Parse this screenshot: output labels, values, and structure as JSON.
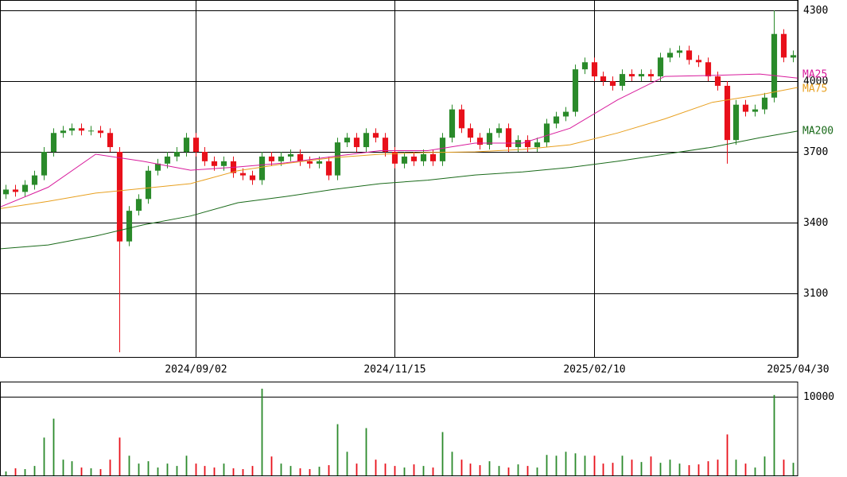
{
  "chart_data": [
    {
      "type": "candlestick",
      "up_color": "#2a8a2a",
      "down_color": "#e8101a",
      "xlim": [
        0,
        84
      ],
      "xticks": [
        {
          "value": 20.5,
          "label": "2024/09/02"
        },
        {
          "value": 41.5,
          "label": "2024/11/15"
        },
        {
          "value": 62.5,
          "label": "2025/02/10"
        },
        {
          "value": 84,
          "label": "2025/04/30"
        }
      ],
      "ylim": [
        2830,
        4344
      ],
      "yticks": [
        3100,
        3400,
        3700,
        4000,
        4300
      ],
      "grid": true,
      "open": [
        3520,
        3540,
        3530,
        3560,
        3600,
        3700,
        3780,
        3790,
        3800,
        3790,
        3790,
        3780,
        3700,
        3320,
        3450,
        3500,
        3620,
        3650,
        3680,
        3700,
        3760,
        3700,
        3660,
        3640,
        3660,
        3610,
        3600,
        3580,
        3680,
        3660,
        3680,
        3690,
        3660,
        3650,
        3660,
        3600,
        3740,
        3760,
        3720,
        3780,
        3760,
        3700,
        3650,
        3680,
        3660,
        3690,
        3660,
        3760,
        3880,
        3800,
        3760,
        3730,
        3780,
        3800,
        3720,
        3750,
        3720,
        3740,
        3820,
        3850,
        3870,
        4050,
        4080,
        4020,
        4000,
        3980,
        4030,
        4020,
        4030,
        4020,
        4100,
        4120,
        4130,
        4090,
        4080,
        4020,
        3980,
        3750,
        3900,
        3870,
        3880,
        3930,
        4200,
        4100
      ],
      "high": [
        3560,
        3560,
        3580,
        3620,
        3720,
        3800,
        3810,
        3820,
        3820,
        3810,
        3810,
        3800,
        3720,
        3470,
        3520,
        3640,
        3670,
        3700,
        3720,
        3780,
        3780,
        3720,
        3680,
        3680,
        3680,
        3630,
        3620,
        3700,
        3700,
        3700,
        3710,
        3710,
        3680,
        3680,
        3680,
        3760,
        3780,
        3780,
        3800,
        3800,
        3780,
        3720,
        3700,
        3700,
        3710,
        3710,
        3780,
        3900,
        3900,
        3820,
        3780,
        3800,
        3820,
        3820,
        3770,
        3770,
        3760,
        3840,
        3870,
        3890,
        4070,
        4100,
        4100,
        4040,
        4020,
        4050,
        4050,
        4050,
        4050,
        4120,
        4140,
        4150,
        4150,
        4110,
        4100,
        4040,
        4000,
        3920,
        3920,
        3900,
        3950,
        4300,
        4220,
        4130
      ],
      "low": [
        3500,
        3510,
        3510,
        3540,
        3580,
        3680,
        3760,
        3770,
        3770,
        3770,
        3760,
        3700,
        2850,
        3300,
        3430,
        3480,
        3600,
        3630,
        3660,
        3680,
        3680,
        3640,
        3620,
        3620,
        3590,
        3580,
        3560,
        3560,
        3640,
        3640,
        3660,
        3640,
        3630,
        3630,
        3580,
        3580,
        3720,
        3700,
        3700,
        3740,
        3680,
        3630,
        3630,
        3640,
        3640,
        3640,
        3640,
        3740,
        3780,
        3740,
        3710,
        3710,
        3760,
        3700,
        3700,
        3700,
        3700,
        3720,
        3800,
        3830,
        3850,
        4030,
        4000,
        3980,
        3960,
        3960,
        4000,
        4000,
        4000,
        4000,
        4080,
        4100,
        4070,
        4060,
        4000,
        3960,
        3650,
        3730,
        3850,
        3850,
        3860,
        3910,
        4080,
        4080
      ],
      "close": [
        3540,
        3530,
        3560,
        3600,
        3700,
        3780,
        3790,
        3800,
        3790,
        3790,
        3780,
        3720,
        3320,
        3450,
        3500,
        3620,
        3650,
        3680,
        3700,
        3760,
        3700,
        3660,
        3640,
        3660,
        3610,
        3600,
        3580,
        3680,
        3660,
        3680,
        3690,
        3660,
        3650,
        3660,
        3600,
        3740,
        3760,
        3720,
        3780,
        3760,
        3700,
        3650,
        3680,
        3660,
        3690,
        3660,
        3760,
        3880,
        3800,
        3760,
        3730,
        3780,
        3800,
        3720,
        3750,
        3720,
        3740,
        3820,
        3850,
        3870,
        4050,
        4080,
        4020,
        4000,
        3980,
        4030,
        4020,
        4030,
        4020,
        4100,
        4120,
        4130,
        4090,
        4080,
        4020,
        3980,
        3750,
        3900,
        3870,
        3880,
        3930,
        4200,
        4100,
        4110
      ],
      "lines": [
        {
          "name": "MA25",
          "color": "#d81b9c",
          "x": [
            0,
            5,
            10,
            15,
            20,
            25,
            30,
            35,
            40,
            45,
            50,
            55,
            60,
            65,
            70,
            75,
            80,
            84
          ],
          "values": [
            3467,
            3550,
            3690,
            3660,
            3622,
            3636,
            3653,
            3680,
            3705,
            3705,
            3737,
            3737,
            3800,
            3920,
            4020,
            4024,
            4030,
            4013
          ]
        },
        {
          "name": "MA75",
          "color": "#e8a020",
          "x": [
            0,
            5,
            10,
            15,
            20,
            25,
            30,
            35,
            40,
            45,
            50,
            55,
            60,
            65,
            70,
            75,
            80,
            84
          ],
          "values": [
            3460,
            3490,
            3525,
            3545,
            3565,
            3620,
            3650,
            3675,
            3690,
            3697,
            3700,
            3710,
            3730,
            3780,
            3840,
            3910,
            3942,
            3973
          ]
        },
        {
          "name": "MA200",
          "color": "#1a6a1a",
          "x": [
            0,
            5,
            10,
            15,
            20,
            25,
            30,
            35,
            40,
            45,
            50,
            55,
            60,
            65,
            70,
            75,
            80,
            84
          ],
          "values": [
            3289,
            3305,
            3343,
            3390,
            3428,
            3484,
            3510,
            3540,
            3565,
            3580,
            3602,
            3615,
            3634,
            3660,
            3690,
            3720,
            3760,
            3788
          ]
        }
      ]
    },
    {
      "type": "bar",
      "xlim": [
        0,
        84
      ],
      "ylim": [
        0,
        11900
      ],
      "yticks": [
        10000
      ],
      "values": [
        500,
        900,
        800,
        1200,
        4800,
        7200,
        2000,
        1800,
        1000,
        900,
        800,
        2000,
        4800,
        2500,
        1500,
        1800,
        1000,
        1500,
        1200,
        2500,
        1500,
        1200,
        1000,
        1500,
        900,
        800,
        1200,
        11000,
        2400,
        1500,
        1200,
        900,
        800,
        1100,
        1300,
        6500,
        3000,
        1500,
        6000,
        2000,
        1500,
        1200,
        1000,
        1400,
        1200,
        1000,
        5500,
        3000,
        2000,
        1500,
        1300,
        1800,
        1200,
        1000,
        1400,
        1200,
        1000,
        2600,
        2500,
        3000,
        2800,
        2500,
        2500,
        1500,
        1600,
        2500,
        2000,
        1700,
        2400,
        1600,
        2000,
        1500,
        1300,
        1400,
        1800,
        2000,
        5200,
        2000,
        1500,
        1000,
        2400,
        10200,
        2000,
        1600
      ]
    }
  ]
}
